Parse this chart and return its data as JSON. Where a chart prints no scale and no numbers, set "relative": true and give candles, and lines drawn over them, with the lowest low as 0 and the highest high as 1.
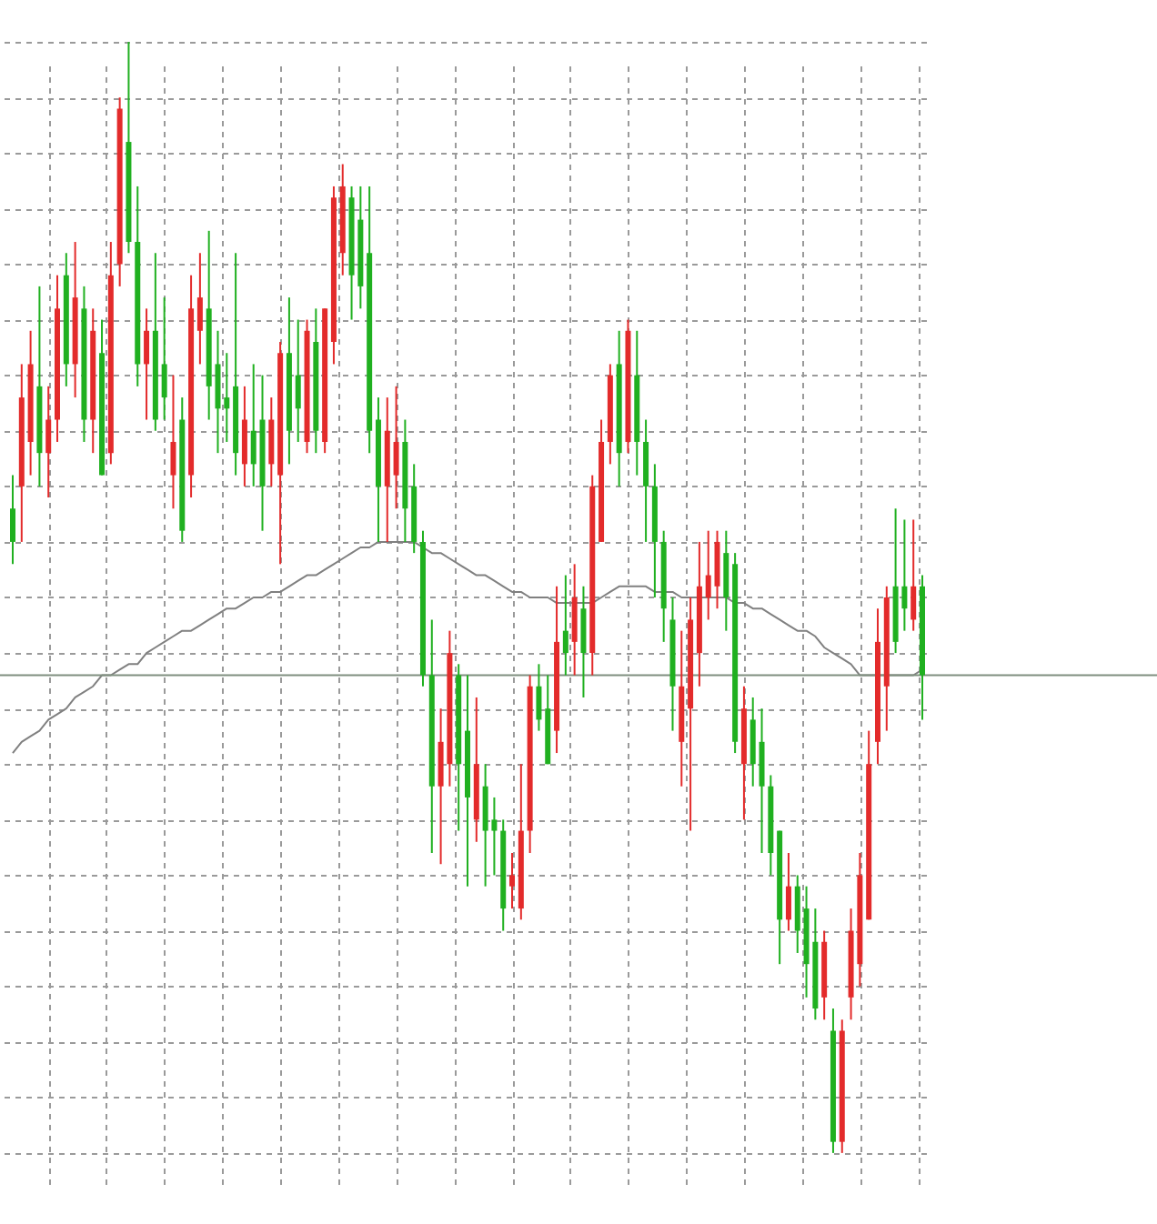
{
  "chart_data": {
    "type": "candlestick",
    "relative": true,
    "grid": true,
    "categories": [
      null,
      null,
      null,
      null,
      null,
      null,
      null,
      null,
      null,
      null,
      null,
      null,
      null,
      null,
      null,
      null,
      null,
      null,
      null,
      null,
      null,
      null,
      null,
      null,
      null,
      null,
      null,
      null,
      null,
      null,
      null,
      null,
      null,
      null,
      null,
      null,
      null,
      null,
      null,
      null,
      null,
      null,
      null,
      null,
      null,
      null,
      null,
      null,
      null,
      null,
      null,
      null,
      null,
      null,
      null,
      null,
      null,
      null,
      null,
      null,
      null,
      null,
      null,
      null,
      null,
      null,
      null,
      null,
      null,
      null,
      null,
      null,
      null,
      null,
      null,
      null,
      null,
      null,
      null,
      null,
      null,
      null,
      null,
      null,
      null,
      null,
      null,
      null,
      null,
      null,
      null,
      null,
      null,
      null,
      null,
      null,
      null,
      null,
      null,
      null,
      null,
      null,
      null
    ],
    "ohlc": [
      [
        0.58,
        0.61,
        0.53,
        0.55
      ],
      [
        0.6,
        0.71,
        0.55,
        0.68
      ],
      [
        0.64,
        0.74,
        0.61,
        0.71
      ],
      [
        0.69,
        0.78,
        0.6,
        0.63
      ],
      [
        0.63,
        0.69,
        0.59,
        0.66
      ],
      [
        0.66,
        0.79,
        0.64,
        0.76
      ],
      [
        0.79,
        0.81,
        0.69,
        0.71
      ],
      [
        0.71,
        0.82,
        0.68,
        0.77
      ],
      [
        0.76,
        0.78,
        0.64,
        0.66
      ],
      [
        0.66,
        0.76,
        0.63,
        0.74
      ],
      [
        0.72,
        0.75,
        0.61,
        0.61
      ],
      [
        0.63,
        0.82,
        0.62,
        0.79
      ],
      [
        0.8,
        0.95,
        0.78,
        0.94
      ],
      [
        0.91,
        1.0,
        0.81,
        0.82
      ],
      [
        0.82,
        0.87,
        0.69,
        0.71
      ],
      [
        0.71,
        0.76,
        0.66,
        0.74
      ],
      [
        0.74,
        0.81,
        0.65,
        0.66
      ],
      [
        0.71,
        0.77,
        0.66,
        0.68
      ],
      [
        0.61,
        0.7,
        0.58,
        0.64
      ],
      [
        0.66,
        0.68,
        0.55,
        0.56
      ],
      [
        0.61,
        0.79,
        0.59,
        0.76
      ],
      [
        0.74,
        0.81,
        0.71,
        0.77
      ],
      [
        0.76,
        0.83,
        0.66,
        0.69
      ],
      [
        0.71,
        0.74,
        0.63,
        0.67
      ],
      [
        0.68,
        0.72,
        0.64,
        0.67
      ],
      [
        0.69,
        0.81,
        0.61,
        0.63
      ],
      [
        0.62,
        0.69,
        0.6,
        0.66
      ],
      [
        0.65,
        0.71,
        0.6,
        0.62
      ],
      [
        0.66,
        0.7,
        0.56,
        0.6
      ],
      [
        0.62,
        0.68,
        0.6,
        0.66
      ],
      [
        0.61,
        0.73,
        0.53,
        0.72
      ],
      [
        0.72,
        0.77,
        0.62,
        0.65
      ],
      [
        0.7,
        0.75,
        0.64,
        0.67
      ],
      [
        0.64,
        0.75,
        0.63,
        0.74
      ],
      [
        0.73,
        0.76,
        0.63,
        0.65
      ],
      [
        0.64,
        0.76,
        0.63,
        0.76
      ],
      [
        0.73,
        0.87,
        0.71,
        0.86
      ],
      [
        0.81,
        0.89,
        0.79,
        0.87
      ],
      [
        0.86,
        0.87,
        0.75,
        0.79
      ],
      [
        0.84,
        0.87,
        0.76,
        0.78
      ],
      [
        0.81,
        0.87,
        0.63,
        0.65
      ],
      [
        0.66,
        0.68,
        0.55,
        0.6
      ],
      [
        0.6,
        0.68,
        0.55,
        0.65
      ],
      [
        0.61,
        0.69,
        0.58,
        0.64
      ],
      [
        0.64,
        0.66,
        0.55,
        0.58
      ],
      [
        0.6,
        0.62,
        0.54,
        0.55
      ],
      [
        0.55,
        0.56,
        0.42,
        0.43
      ],
      [
        0.43,
        0.48,
        0.27,
        0.33
      ],
      [
        0.33,
        0.4,
        0.26,
        0.37
      ],
      [
        0.35,
        0.47,
        0.33,
        0.45
      ],
      [
        0.43,
        0.44,
        0.29,
        0.35
      ],
      [
        0.38,
        0.43,
        0.24,
        0.32
      ],
      [
        0.3,
        0.41,
        0.28,
        0.35
      ],
      [
        0.33,
        0.35,
        0.24,
        0.29
      ],
      [
        0.3,
        0.32,
        0.25,
        0.29
      ],
      [
        0.29,
        0.3,
        0.2,
        0.22
      ],
      [
        0.24,
        0.27,
        0.22,
        0.25
      ],
      [
        0.22,
        0.35,
        0.21,
        0.29
      ],
      [
        0.29,
        0.43,
        0.27,
        0.42
      ],
      [
        0.42,
        0.44,
        0.38,
        0.39
      ],
      [
        0.4,
        0.43,
        0.35,
        0.35
      ],
      [
        0.38,
        0.51,
        0.36,
        0.46
      ],
      [
        0.47,
        0.52,
        0.43,
        0.45
      ],
      [
        0.46,
        0.53,
        0.43,
        0.5
      ],
      [
        0.49,
        0.51,
        0.41,
        0.45
      ],
      [
        0.45,
        0.61,
        0.43,
        0.6
      ],
      [
        0.55,
        0.66,
        0.55,
        0.64
      ],
      [
        0.64,
        0.71,
        0.62,
        0.7
      ],
      [
        0.71,
        0.74,
        0.6,
        0.63
      ],
      [
        0.64,
        0.75,
        0.63,
        0.74
      ],
      [
        0.7,
        0.74,
        0.61,
        0.64
      ],
      [
        0.64,
        0.66,
        0.55,
        0.6
      ],
      [
        0.6,
        0.62,
        0.5,
        0.55
      ],
      [
        0.55,
        0.56,
        0.46,
        0.49
      ],
      [
        0.48,
        0.5,
        0.38,
        0.42
      ],
      [
        0.37,
        0.47,
        0.33,
        0.42
      ],
      [
        0.4,
        0.5,
        0.29,
        0.48
      ],
      [
        0.45,
        0.55,
        0.42,
        0.51
      ],
      [
        0.5,
        0.56,
        0.48,
        0.52
      ],
      [
        0.51,
        0.56,
        0.49,
        0.55
      ],
      [
        0.54,
        0.56,
        0.47,
        0.5
      ],
      [
        0.53,
        0.54,
        0.36,
        0.37
      ],
      [
        0.35,
        0.42,
        0.3,
        0.4
      ],
      [
        0.39,
        0.41,
        0.33,
        0.35
      ],
      [
        0.37,
        0.4,
        0.27,
        0.33
      ],
      [
        0.33,
        0.34,
        0.25,
        0.27
      ],
      [
        0.29,
        0.29,
        0.17,
        0.21
      ],
      [
        0.21,
        0.27,
        0.2,
        0.24
      ],
      [
        0.24,
        0.25,
        0.18,
        0.2
      ],
      [
        0.22,
        0.24,
        0.14,
        0.17
      ],
      [
        0.19,
        0.22,
        0.12,
        0.13
      ],
      [
        0.14,
        0.2,
        0.12,
        0.19
      ],
      [
        0.11,
        0.13,
        0,
        0.01
      ],
      [
        0.01,
        0.12,
        0,
        0.11
      ],
      [
        0.14,
        0.22,
        0.12,
        0.2
      ],
      [
        0.17,
        0.27,
        0.15,
        0.25
      ],
      [
        0.21,
        0.38,
        0.21,
        0.35
      ],
      [
        0.37,
        0.49,
        0.35,
        0.46
      ],
      [
        0.42,
        0.51,
        0.38,
        0.5
      ],
      [
        0.51,
        0.58,
        0.45,
        0.46
      ],
      [
        0.51,
        0.57,
        0.47,
        0.49
      ],
      [
        0.48,
        0.57,
        0.47,
        0.51
      ],
      [
        0.51,
        0.52,
        0.39,
        0.43
      ]
    ],
    "colors": [
      "#20b020",
      "#e32b2b",
      "#e32b2b",
      "#20b020",
      "#e32b2b",
      "#e32b2b",
      "#20b020",
      "#e32b2b",
      "#20b020",
      "#e32b2b",
      "#20b020",
      "#e32b2b",
      "#e32b2b",
      "#20b020",
      "#20b020",
      "#e32b2b",
      "#20b020",
      "#20b020",
      "#e32b2b",
      "#20b020",
      "#e32b2b",
      "#e32b2b",
      "#20b020",
      "#20b020",
      "#20b020",
      "#20b020",
      "#e32b2b",
      "#20b020",
      "#20b020",
      "#e32b2b",
      "#e32b2b",
      "#20b020",
      "#20b020",
      "#e32b2b",
      "#20b020",
      "#e32b2b",
      "#e32b2b",
      "#e32b2b",
      "#20b020",
      "#20b020",
      "#20b020",
      "#20b020",
      "#e32b2b",
      "#e32b2b",
      "#20b020",
      "#20b020",
      "#20b020",
      "#20b020",
      "#e32b2b",
      "#e32b2b",
      "#20b020",
      "#20b020",
      "#e32b2b",
      "#20b020",
      "#20b020",
      "#20b020",
      "#e32b2b",
      "#e32b2b",
      "#e32b2b",
      "#20b020",
      "#20b020",
      "#e32b2b",
      "#20b020",
      "#e32b2b",
      "#20b020",
      "#e32b2b",
      "#e32b2b",
      "#e32b2b",
      "#20b020",
      "#e32b2b",
      "#20b020",
      "#20b020",
      "#20b020",
      "#20b020",
      "#20b020",
      "#e32b2b",
      "#e32b2b",
      "#e32b2b",
      "#e32b2b",
      "#e32b2b",
      "#20b020",
      "#20b020",
      "#e32b2b",
      "#20b020",
      "#20b020",
      "#20b020",
      "#20b020",
      "#e32b2b",
      "#20b020",
      "#20b020",
      "#20b020",
      "#e32b2b",
      "#20b020",
      "#e32b2b",
      "#e32b2b",
      "#e32b2b",
      "#e32b2b",
      "#e32b2b",
      "#e32b2b",
      "#20b020",
      "#20b020",
      "#e32b2b",
      "#20b020"
    ],
    "series": [
      {
        "type": "line",
        "color": "#808080",
        "values": [
          0.36,
          0.37,
          0.375,
          0.38,
          0.39,
          0.395,
          0.4,
          0.41,
          0.415,
          0.42,
          0.43,
          0.43,
          0.435,
          0.44,
          0.44,
          0.45,
          0.455,
          0.46,
          0.465,
          0.47,
          0.47,
          0.475,
          0.48,
          0.485,
          0.49,
          0.49,
          0.495,
          0.5,
          0.5,
          0.505,
          0.505,
          0.51,
          0.515,
          0.52,
          0.52,
          0.525,
          0.53,
          0.535,
          0.54,
          0.545,
          0.545,
          0.55,
          0.55,
          0.55,
          0.55,
          0.55,
          0.545,
          0.54,
          0.54,
          0.535,
          0.53,
          0.525,
          0.52,
          0.52,
          0.515,
          0.51,
          0.505,
          0.505,
          0.5,
          0.5,
          0.5,
          0.495,
          0.495,
          0.495,
          0.495,
          0.495,
          0.5,
          0.505,
          0.51,
          0.51,
          0.51,
          0.51,
          0.505,
          0.505,
          0.505,
          0.5,
          0.5,
          0.5,
          0.5,
          0.5,
          0.5,
          0.495,
          0.495,
          0.49,
          0.49,
          0.485,
          0.48,
          0.475,
          0.47,
          0.47,
          0.465,
          0.455,
          0.45,
          0.445,
          0.44,
          0.43,
          0.43,
          0.43,
          0.43,
          0.43,
          0.43,
          0.43,
          0.435
        ]
      }
    ],
    "ref_lines": [
      {
        "axis": "y",
        "value": 0.43,
        "color": "#7f8f7f"
      }
    ]
  }
}
